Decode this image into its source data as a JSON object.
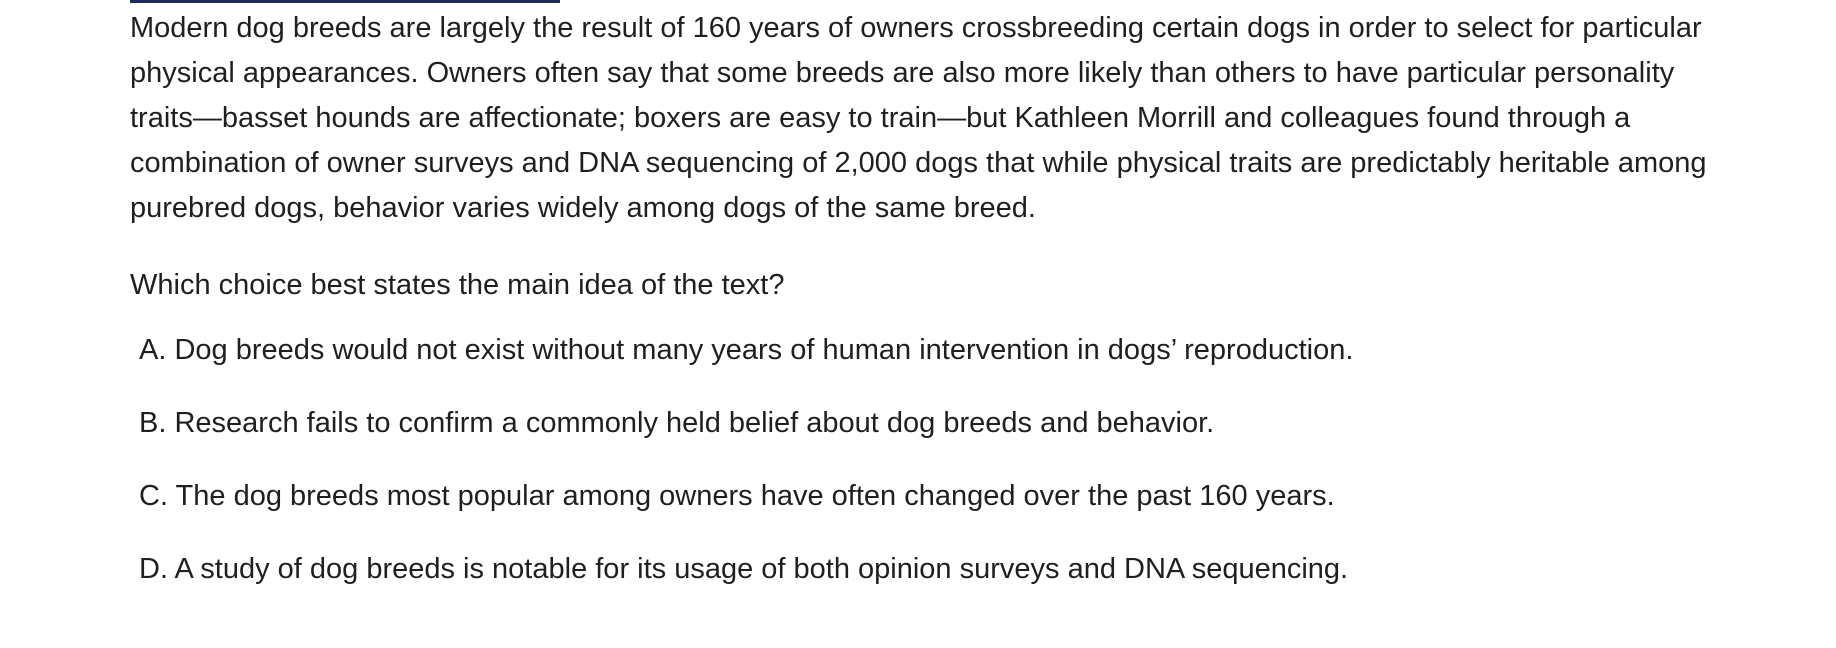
{
  "passage": {
    "text": "Modern dog breeds are largely the result of 160 years of owners crossbreeding certain dogs in order to select for particular physical appearances. Owners often say that some breeds are also more likely than others to have particular personality traits—basset hounds are affectionate; boxers are easy to train—but Kathleen Morrill and colleagues found through a combination of owner surveys and DNA sequencing of 2,000 dogs that while physical traits are predictably heritable among purebred dogs, behavior varies widely among dogs of the same breed."
  },
  "question": {
    "text": "Which choice best states the main idea of the text?"
  },
  "choices": [
    {
      "letter": "A.",
      "text": "Dog breeds would not exist without many years of human intervention in dogs’ reproduction."
    },
    {
      "letter": "B.",
      "text": "Research fails to confirm a commonly held belief about dog breeds and behavior."
    },
    {
      "letter": "C.",
      "text": "The dog breeds most popular among owners have often changed over the past 160 years."
    },
    {
      "letter": "D.",
      "text": "A study of dog breeds is notable for its usage of both opinion surveys and DNA sequencing."
    }
  ],
  "colors": {
    "accent_rule": "#1c2a5c",
    "text": "#1f1f1f"
  }
}
